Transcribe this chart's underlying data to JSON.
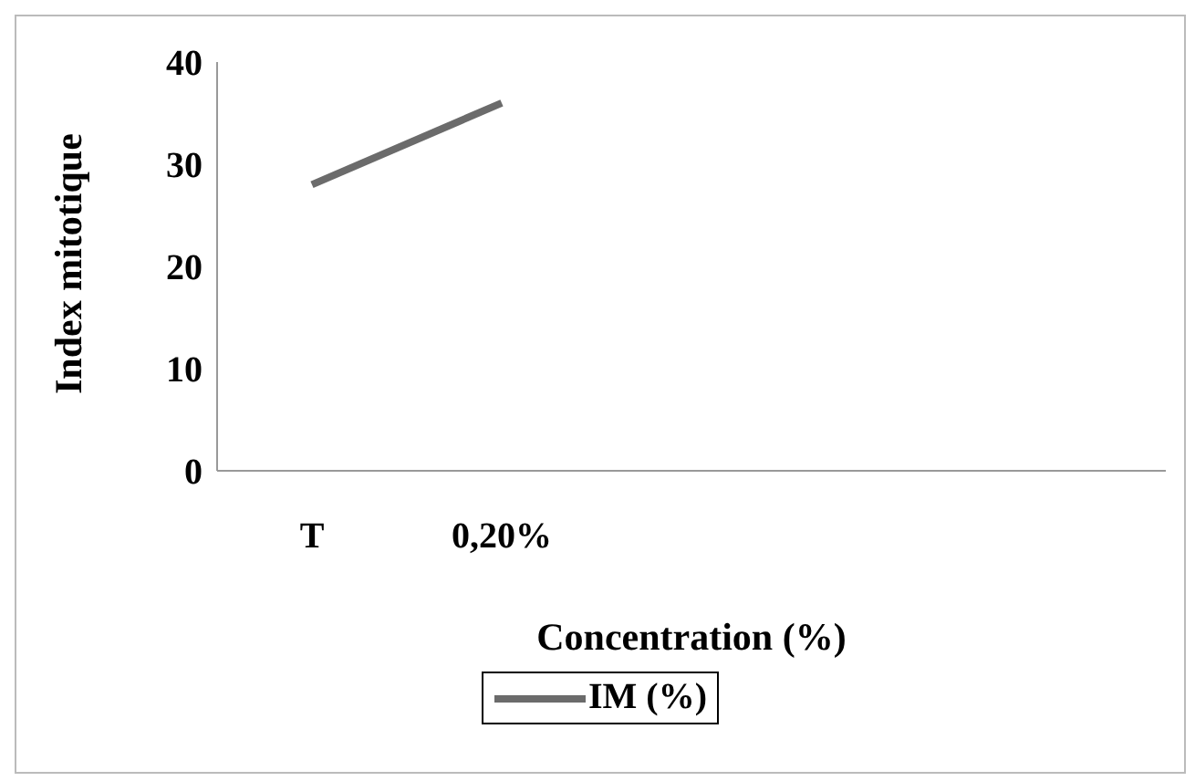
{
  "chart_data": {
    "type": "line",
    "xlabel": "Concentration (%)",
    "ylabel": "Index mitotique",
    "categories": [
      "T",
      "0,20%",
      null,
      null,
      null
    ],
    "series": [
      {
        "name": "IM (%)",
        "color": "#6b6b6b",
        "values": [
          28,
          36,
          null,
          null,
          null
        ]
      }
    ],
    "ylim": [
      0,
      40
    ],
    "yticks": [
      0,
      10,
      20,
      30,
      40
    ],
    "grid": false,
    "legend": "bottom",
    "marker": "none"
  }
}
